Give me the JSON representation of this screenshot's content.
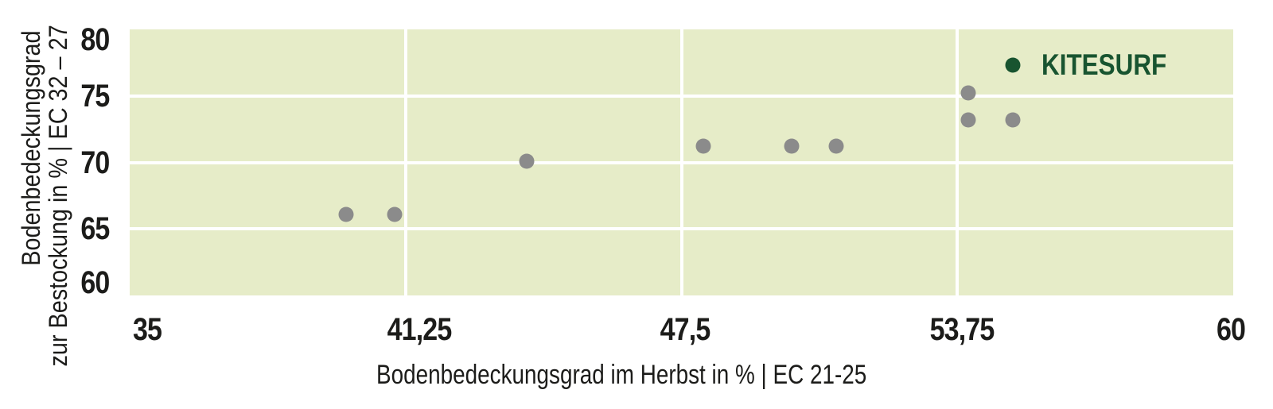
{
  "chart_data": {
    "type": "scatter",
    "xlabel": "Bodenbedeckungsgrad im Herbst in % | EC 21-25",
    "ylabel_lines": [
      "Bodenbedeckungsgrad",
      "zur Bestockung in % | EC 32 – 27"
    ],
    "xlim": [
      35,
      60
    ],
    "ylim": [
      60,
      80
    ],
    "grid": "on",
    "x_ticks": [
      {
        "value": 35,
        "label": "35"
      },
      {
        "value": 41.25,
        "label": "41,25"
      },
      {
        "value": 47.5,
        "label": "47,5"
      },
      {
        "value": 53.75,
        "label": "53,75"
      },
      {
        "value": 60,
        "label": "60"
      }
    ],
    "y_ticks": [
      {
        "value": 80,
        "label": "80"
      },
      {
        "value": 75,
        "label": "75"
      },
      {
        "value": 70,
        "label": "70"
      },
      {
        "value": 65,
        "label": "65"
      },
      {
        "value": 60,
        "label": "60"
      }
    ],
    "gridlines_vertical_at": [
      41.25,
      47.5,
      53.75
    ],
    "gridlines_horizontal_at": [
      75,
      70,
      65
    ],
    "points": [
      {
        "x": 39.9,
        "y": 66.1
      },
      {
        "x": 41.0,
        "y": 66.1
      },
      {
        "x": 44.0,
        "y": 70.1
      },
      {
        "x": 48.0,
        "y": 71.2
      },
      {
        "x": 50.0,
        "y": 71.2
      },
      {
        "x": 51.0,
        "y": 71.2
      },
      {
        "x": 54.0,
        "y": 75.2
      },
      {
        "x": 54.0,
        "y": 73.2
      },
      {
        "x": 55.0,
        "y": 73.2
      }
    ],
    "highlight": {
      "label": "KITESURF",
      "x": 55.0,
      "y": 77.3
    },
    "colors": {
      "plot_background": "#e6ecc8",
      "gridline": "#ffffff",
      "point": "#8b8b8b",
      "highlight": "#185430",
      "text": "#1c1c1a"
    }
  }
}
